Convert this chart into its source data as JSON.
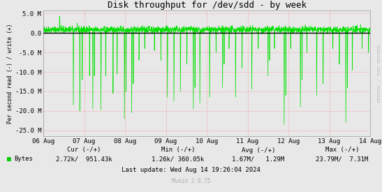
{
  "title": "Disk throughput for /dev/sdd - by week",
  "ylabel": "Per second read (-) / write (+)",
  "background_color": "#e8e8e8",
  "plot_bg_color": "#e8e8e8",
  "grid_color": "#ff8080",
  "line_color": "#00e000",
  "zero_line_color": "#000000",
  "ylim": [
    -26500000,
    5800000
  ],
  "yticks": [
    5000000,
    0,
    -5000000,
    -10000000,
    -15000000,
    -20000000,
    -25000000
  ],
  "ytick_labels": [
    "5.0 M",
    "0.0",
    "-5.0 M",
    "-10.0 M",
    "-15.0 M",
    "-20.0 M",
    "-25.0 M"
  ],
  "xtick_labels": [
    "06 Aug",
    "07 Aug",
    "08 Aug",
    "09 Aug",
    "10 Aug",
    "11 Aug",
    "12 Aug",
    "13 Aug",
    "14 Aug"
  ],
  "legend_label": "Bytes",
  "legend_color": "#00cc00",
  "cur_label": "Cur (-/+)",
  "min_label": "Min (-/+)",
  "avg_label": "Avg (-/+)",
  "max_label": "Max (-/+)",
  "cur_val": "2.72k/  951.43k",
  "min_val": "1.26k/ 360.05k",
  "avg_val": "1.67M/   1.29M",
  "max_val": "23.79M/  7.31M",
  "last_update": "Last update: Wed Aug 14 19:26:04 2024",
  "munin_version": "Munin 2.0.75",
  "watermark": "RRDTOOL / TOBI OETIKER",
  "title_fontsize": 9,
  "label_fontsize": 6.5,
  "tick_fontsize": 6.5,
  "n_points": 2016,
  "seed": 42
}
